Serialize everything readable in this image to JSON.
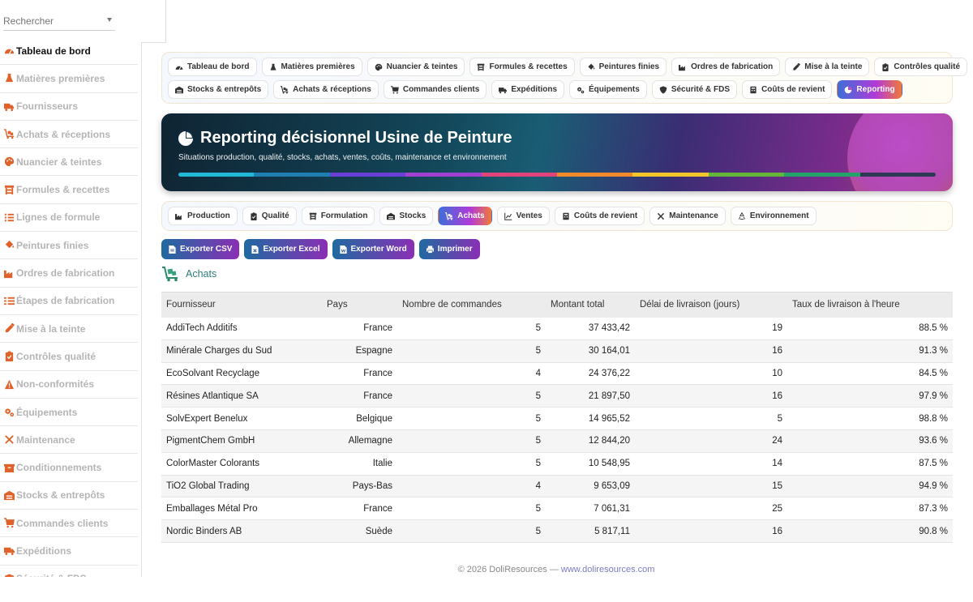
{
  "search": {
    "placeholder": "Rechercher"
  },
  "sidebar": {
    "items": [
      {
        "label": "Tableau de bord",
        "icon": "dashboard-icon",
        "active": true
      },
      {
        "label": "Matières premières",
        "icon": "flask-icon"
      },
      {
        "label": "Fournisseurs",
        "icon": "truck-icon"
      },
      {
        "label": "Achats & réceptions",
        "icon": "cart-flatbed-icon"
      },
      {
        "label": "Nuancier & teintes",
        "icon": "palette-icon"
      },
      {
        "label": "Formules & recettes",
        "icon": "recipe-icon"
      },
      {
        "label": "Lignes de formule",
        "icon": "list-icon"
      },
      {
        "label": "Peintures finies",
        "icon": "paint-bucket-icon"
      },
      {
        "label": "Ordres de fabrication",
        "icon": "industry-icon"
      },
      {
        "label": "Étapes de fabrication",
        "icon": "list-ol-icon"
      },
      {
        "label": "Mise à la teinte",
        "icon": "dropper-icon"
      },
      {
        "label": "Contrôles qualité",
        "icon": "clipboard-check-icon"
      },
      {
        "label": "Non-conformités",
        "icon": "warning-icon"
      },
      {
        "label": "Équipements",
        "icon": "gears-icon"
      },
      {
        "label": "Maintenance",
        "icon": "tools-icon"
      },
      {
        "label": "Conditionnements",
        "icon": "box-icon"
      },
      {
        "label": "Stocks & entrepôts",
        "icon": "warehouse-icon"
      },
      {
        "label": "Commandes clients",
        "icon": "cart-icon"
      },
      {
        "label": "Expéditions",
        "icon": "shipping-icon"
      },
      {
        "label": "Sécurité & FDS",
        "icon": "shield-icon"
      }
    ]
  },
  "menu": {
    "row1": [
      {
        "label": "Tableau de bord",
        "icon": "dashboard-icon"
      },
      {
        "label": "Matières premières",
        "icon": "flask-icon"
      },
      {
        "label": "Nuancier & teintes",
        "icon": "palette-icon"
      },
      {
        "label": "Formules & recettes",
        "icon": "recipe-icon"
      },
      {
        "label": "Peintures finies",
        "icon": "paint-bucket-icon"
      },
      {
        "label": "Ordres de fabrication",
        "icon": "industry-icon"
      },
      {
        "label": "Mise à la teinte",
        "icon": "dropper-icon"
      },
      {
        "label": "Contrôles qualité",
        "icon": "clipboard-check-icon"
      }
    ],
    "row2": [
      {
        "label": "Stocks & entrepôts",
        "icon": "warehouse-icon"
      },
      {
        "label": "Achats & réceptions",
        "icon": "cart-flatbed-icon"
      },
      {
        "label": "Commandes clients",
        "icon": "cart-icon"
      },
      {
        "label": "Expéditions",
        "icon": "shipping-icon"
      },
      {
        "label": "Équipements",
        "icon": "gears-icon"
      },
      {
        "label": "Sécurité & FDS",
        "icon": "shield-icon"
      },
      {
        "label": "Coûts de revient",
        "icon": "coins-icon"
      },
      {
        "label": "Reporting",
        "icon": "pie-chart-icon",
        "active": true
      }
    ]
  },
  "banner": {
    "title": "Reporting décisionnel Usine de Peinture",
    "subtitle": "Situations production, qualité, stocks, achats, ventes, coûts, maintenance et environnement",
    "bar_colors": [
      "#22b8d8",
      "#1f7fb0",
      "#6a3fd8",
      "#a13fd0",
      "#e0447a",
      "#f08a2a",
      "#f2c52a",
      "#64b53a",
      "#23a26a",
      "#2e3a55"
    ]
  },
  "report_tabs": [
    {
      "label": "Production",
      "icon": "industry-icon"
    },
    {
      "label": "Qualité",
      "icon": "clipboard-check-icon"
    },
    {
      "label": "Formulation",
      "icon": "recipe-icon"
    },
    {
      "label": "Stocks",
      "icon": "warehouse-icon"
    },
    {
      "label": "Achats",
      "icon": "cart-flatbed-icon",
      "active": true
    },
    {
      "label": "Ventes",
      "icon": "line-chart-icon"
    },
    {
      "label": "Coûts de revient",
      "icon": "coins-icon"
    },
    {
      "label": "Maintenance",
      "icon": "tools-icon"
    },
    {
      "label": "Environnement",
      "icon": "recycle-icon"
    }
  ],
  "exports": {
    "csv": "Exporter CSV",
    "excel": "Exporter Excel",
    "word": "Exporter Word",
    "print": "Imprimer"
  },
  "section": {
    "title": "Achats",
    "icon": "cart-flatbed-icon"
  },
  "table": {
    "headers": [
      "Fournisseur",
      "Pays",
      "Nombre de commandes",
      "Montant total",
      "Délai de livraison (jours)",
      "Taux de livraison à l'heure"
    ],
    "rows": [
      [
        "AddiTech Additifs",
        "France",
        "5",
        "37 433,42",
        "19",
        "88.5 %"
      ],
      [
        "Minérale Charges du Sud",
        "Espagne",
        "5",
        "30 164,01",
        "16",
        "91.3 %"
      ],
      [
        "EcoSolvant Recyclage",
        "France",
        "4",
        "24 376,22",
        "10",
        "84.5 %"
      ],
      [
        "Résines Atlantique SA",
        "France",
        "5",
        "21 897,50",
        "16",
        "97.9 %"
      ],
      [
        "SolvExpert Benelux",
        "Belgique",
        "5",
        "14 965,52",
        "5",
        "98.8 %"
      ],
      [
        "PigmentChem GmbH",
        "Allemagne",
        "5",
        "12 844,20",
        "24",
        "93.6 %"
      ],
      [
        "ColorMaster Colorants",
        "Italie",
        "5",
        "10 548,95",
        "14",
        "87.5 %"
      ],
      [
        "TiO2 Global Trading",
        "Pays-Bas",
        "4",
        "9 653,09",
        "15",
        "94.9 %"
      ],
      [
        "Emballages Métal Pro",
        "France",
        "5",
        "7 061,31",
        "25",
        "87.3 %"
      ],
      [
        "Nordic Binders AB",
        "Suède",
        "5",
        "5 817,11",
        "16",
        "90.8 %"
      ]
    ]
  },
  "footer": {
    "copyright": "© 2026 DoliResources — ",
    "link": "www.doliresources.com"
  },
  "colors": {
    "accent_orange": "#e0622a",
    "section_teal": "#2b7d7a"
  }
}
